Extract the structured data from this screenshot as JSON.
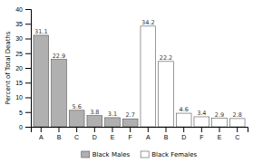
{
  "chart_data": {
    "type": "bar",
    "categories": [
      "A",
      "B",
      "C",
      "D",
      "E",
      "F",
      "A",
      "B",
      "D",
      "F",
      "E",
      "C"
    ],
    "series": [
      {
        "name": "Black Males",
        "color": "#b0b0b0",
        "values": [
          31.1,
          22.9,
          5.6,
          3.8,
          3.1,
          2.7,
          null,
          null,
          null,
          null,
          null,
          null
        ]
      },
      {
        "name": "Black Females",
        "color": "#ffffff",
        "values": [
          null,
          null,
          null,
          null,
          null,
          null,
          34.2,
          22.2,
          4.6,
          3.4,
          2.9,
          2.8
        ]
      }
    ],
    "ylabel": "Percent of Total Deaths",
    "ylim": [
      0,
      40
    ],
    "yticks": [
      0,
      5,
      10,
      15,
      20,
      25,
      30,
      35,
      40
    ],
    "data_labels": true,
    "legend": "bottom",
    "grid": false
  }
}
